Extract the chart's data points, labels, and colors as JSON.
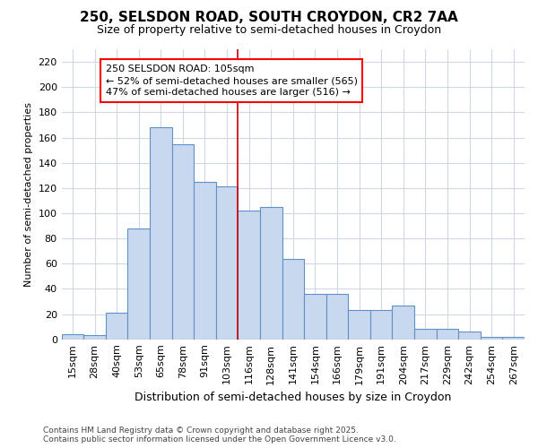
{
  "title1": "250, SELSDON ROAD, SOUTH CROYDON, CR2 7AA",
  "title2": "Size of property relative to semi-detached houses in Croydon",
  "xlabel": "Distribution of semi-detached houses by size in Croydon",
  "ylabel": "Number of semi-detached properties",
  "footnote": "Contains HM Land Registry data © Crown copyright and database right 2025.\nContains public sector information licensed under the Open Government Licence v3.0.",
  "bar_labels": [
    "15sqm",
    "28sqm",
    "40sqm",
    "53sqm",
    "65sqm",
    "78sqm",
    "91sqm",
    "103sqm",
    "116sqm",
    "128sqm",
    "141sqm",
    "154sqm",
    "166sqm",
    "179sqm",
    "191sqm",
    "204sqm",
    "217sqm",
    "229sqm",
    "242sqm",
    "254sqm",
    "267sqm"
  ],
  "bar_values": [
    4,
    3,
    21,
    88,
    168,
    155,
    125,
    121,
    102,
    105,
    64,
    36,
    36,
    23,
    23,
    27,
    8,
    8,
    6,
    2,
    2
  ],
  "bar_color": "#c8d8ef",
  "bar_edge_color": "#6090c8",
  "vline_color": "#cc0000",
  "vline_index": 7.5,
  "annotation_line1": "250 SELSDON ROAD: 105sqm",
  "annotation_line2": "← 52% of semi-detached houses are smaller (565)",
  "annotation_line3": "47% of semi-detached houses are larger (516) →",
  "bg_color": "#ffffff",
  "plot_bg_color": "#ffffff",
  "grid_color": "#d0d8e8",
  "ylim": [
    0,
    230
  ],
  "yticks": [
    0,
    20,
    40,
    60,
    80,
    100,
    120,
    140,
    160,
    180,
    200,
    220
  ],
  "title1_fontsize": 11,
  "title2_fontsize": 9,
  "xlabel_fontsize": 9,
  "ylabel_fontsize": 8,
  "tick_fontsize": 8,
  "footnote_fontsize": 6.5
}
